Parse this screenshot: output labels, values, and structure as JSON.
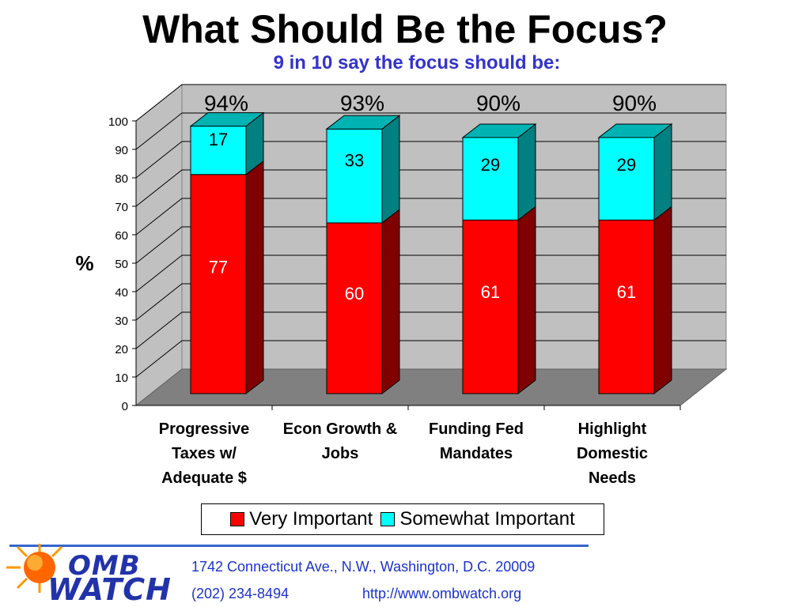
{
  "title": "What Should Be the Focus?",
  "subtitle": "9 in 10 say the focus should be:",
  "chart_data": {
    "type": "bar",
    "stacked": true,
    "categories": [
      [
        "Progressive",
        "Taxes w/",
        "Adequate $"
      ],
      [
        "Econ Growth &",
        "Jobs"
      ],
      [
        "Funding Fed",
        "Mandates"
      ],
      [
        "Highlight",
        "Domestic",
        "Needs"
      ]
    ],
    "series": [
      {
        "name": "Very Important",
        "values": [
          77,
          60,
          61,
          61
        ],
        "color": "#ff0000",
        "side_color": "#800000"
      },
      {
        "name": "Somewhat Important",
        "values": [
          17,
          33,
          29,
          29
        ],
        "color": "#00ffff",
        "side_color": "#008080"
      }
    ],
    "totals": [
      "94%",
      "93%",
      "90%",
      "90%"
    ],
    "ylabel": "%",
    "ylim": [
      0,
      100
    ],
    "yticks": [
      0,
      10,
      20,
      30,
      40,
      50,
      60,
      70,
      80,
      90,
      100
    ],
    "grid": true,
    "legend_position": "bottom"
  },
  "footer": {
    "logo_line1": "OMB",
    "logo_line2": "WATCH",
    "address": "1742 Connecticut Ave., N.W., Washington, D.C. 20009",
    "phone": "(202) 234-8494",
    "url": "http://www.ombwatch.org"
  }
}
